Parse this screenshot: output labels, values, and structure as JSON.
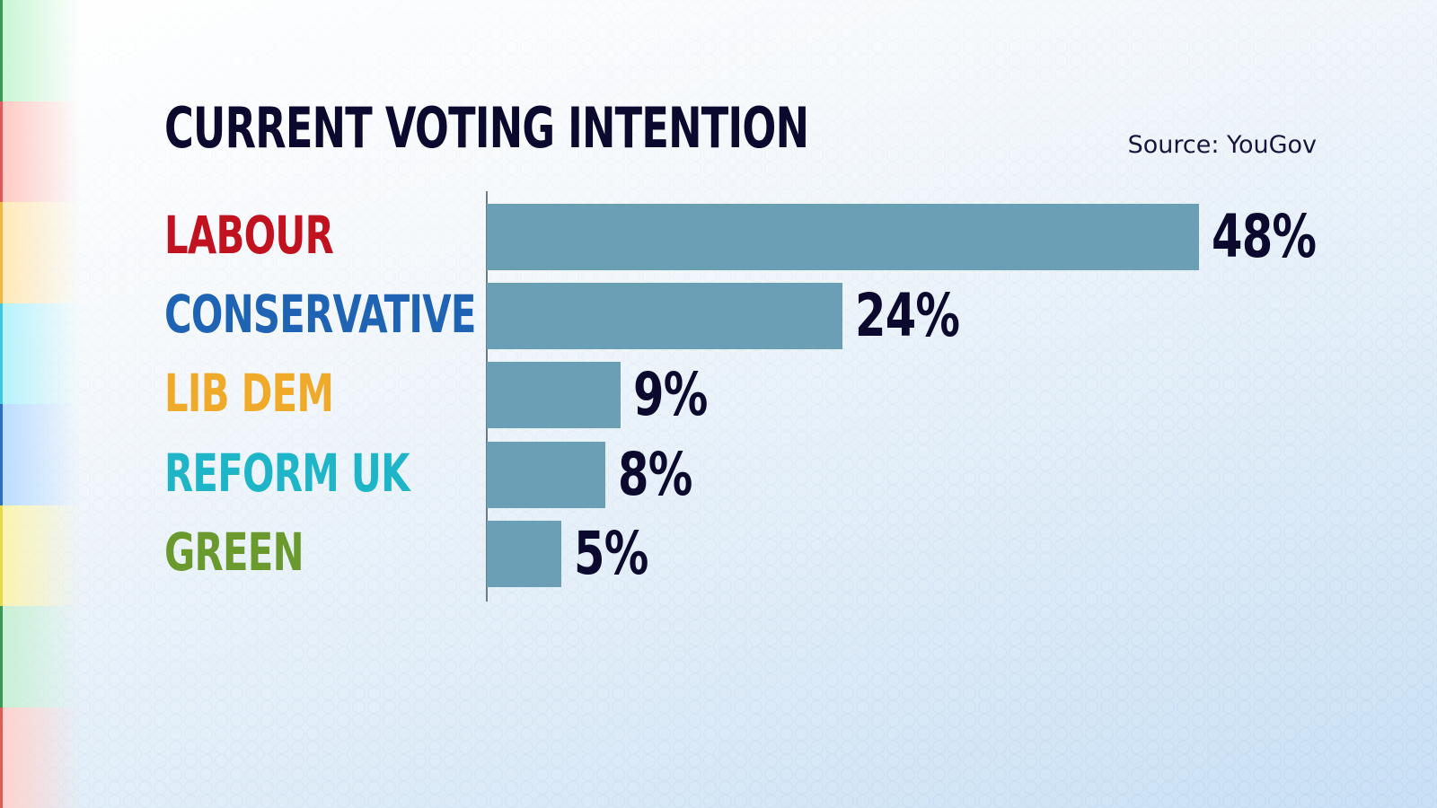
{
  "title": "CURRENT VOTING INTENTION",
  "source": "Source: YouGov",
  "colors": {
    "bar": "#6a9fb5",
    "text_dark": "#0b0a2e",
    "axis": "#6d7b86"
  },
  "edge_stripes": [
    {
      "color": "#3a9a55",
      "glow": "#c8f5d2"
    },
    {
      "color": "#e05a5a",
      "glow": "#ffc9c2"
    },
    {
      "color": "#f0b840",
      "glow": "#ffe9b8"
    },
    {
      "color": "#3ec8de",
      "glow": "#b6f2fb"
    },
    {
      "color": "#2a6fc0",
      "glow": "#b8dcff"
    },
    {
      "color": "#e8d84a",
      "glow": "#fbf3b0"
    },
    {
      "color": "#3a9a55",
      "glow": "#c8f0d4"
    },
    {
      "color": "#e05a5a",
      "glow": "#ffd2cc"
    }
  ],
  "chart_data": {
    "type": "bar",
    "orientation": "horizontal",
    "title": "CURRENT VOTING INTENTION",
    "subtitle": "Source: YouGov",
    "xlabel": "",
    "ylabel": "",
    "unit": "%",
    "grid": false,
    "legend": null,
    "categories": [
      "LABOUR",
      "CONSERVATIVE",
      "LIB DEM",
      "REFORM UK",
      "GREEN"
    ],
    "values": [
      48,
      24,
      9,
      8,
      5
    ],
    "label_colors": [
      "#c0121f",
      "#1f63b5",
      "#f0aa2a",
      "#1fb5c8",
      "#6a9a2e"
    ],
    "data_labels": [
      "48%",
      "24%",
      "9%",
      "8%",
      "5%"
    ]
  }
}
